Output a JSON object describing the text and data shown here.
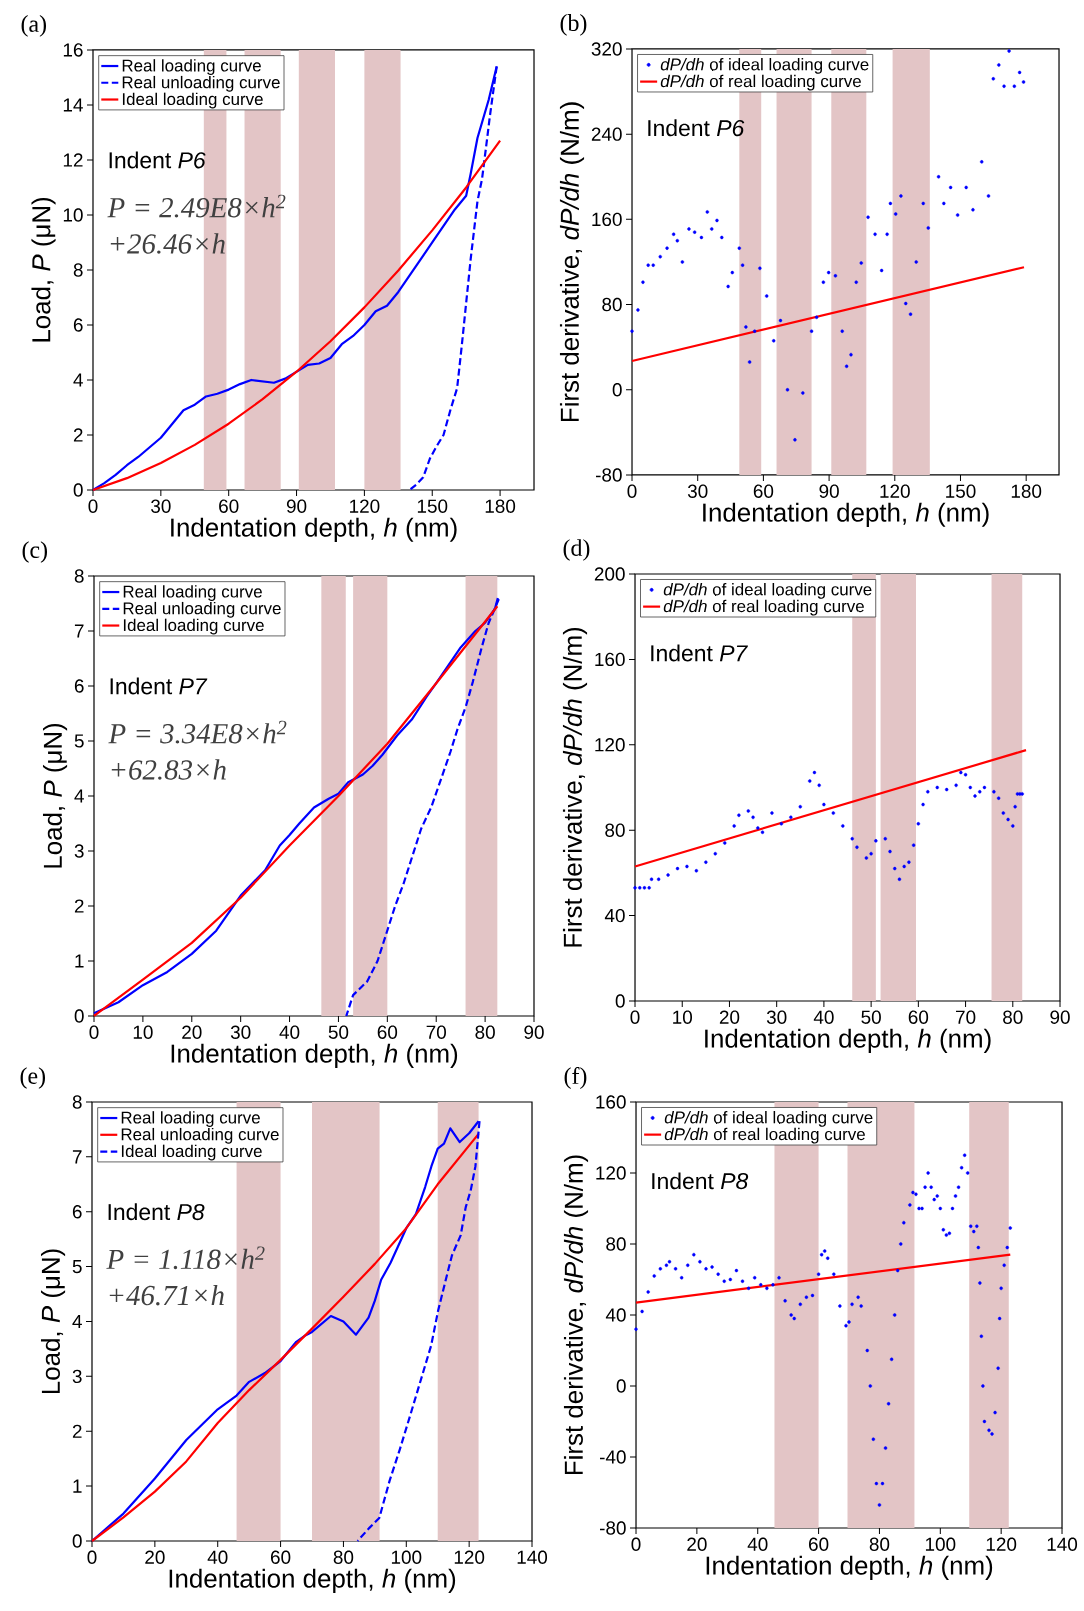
{
  "chart_data": [
    {
      "type": "line",
      "annotations": [
        "(a)",
        "Indent *P6*",
        "P = 2.49E8×h$^{2}$",
        "+26.46×h"
      ],
      "xlabel": "Indentation depth, *h* (nm)",
      "ylabel": "Load, *P* (μN)",
      "xlim": [
        0,
        195
      ],
      "xticks": [
        0,
        30,
        60,
        90,
        120,
        150,
        180
      ],
      "ylim": [
        0,
        16
      ],
      "yticks": [
        0,
        2,
        4,
        6,
        8,
        10,
        12,
        14,
        16
      ],
      "legend": "top left",
      "bands": [
        {
          "axis": "x",
          "from": 49,
          "to": 59,
          "color": "#e3c5c6"
        },
        {
          "axis": "x",
          "from": 67,
          "to": 83,
          "color": "#e3c5c6"
        },
        {
          "axis": "x",
          "from": 91,
          "to": 107,
          "color": "#e3c5c6"
        },
        {
          "axis": "x",
          "from": 120,
          "to": 136,
          "color": "#e3c5c6"
        }
      ],
      "series": [
        {
          "name": "Real loading curve",
          "color": "#0000ff",
          "line_style": "solid",
          "x": [
            0,
            5,
            10,
            15,
            20,
            25,
            30,
            35,
            40,
            45,
            50,
            55,
            60,
            65,
            70,
            75,
            80,
            85,
            90,
            95,
            100,
            105,
            110,
            115,
            120,
            125,
            130,
            135,
            140,
            145,
            150,
            155,
            160,
            165,
            167,
            170,
            175,
            178.5
          ],
          "values": [
            0,
            0.25,
            0.55,
            0.9,
            1.2,
            1.55,
            1.9,
            2.4,
            2.9,
            3.1,
            3.4,
            3.5,
            3.65,
            3.85,
            4.0,
            3.95,
            3.9,
            4.05,
            4.3,
            4.55,
            4.6,
            4.8,
            5.3,
            5.6,
            6.0,
            6.5,
            6.7,
            7.2,
            7.8,
            8.4,
            9.0,
            9.6,
            10.2,
            10.7,
            11.5,
            12.8,
            14.2,
            15.4
          ]
        },
        {
          "name": "Real unloading curve",
          "color": "#0000ff",
          "line_style": "dashed",
          "x": [
            178.5,
            177,
            175.5,
            174,
            172,
            170,
            167,
            165,
            163,
            161,
            158,
            155,
            152,
            149,
            146,
            143,
            140
          ],
          "values": [
            15.4,
            14.5,
            13.6,
            12.6,
            11.3,
            10.5,
            8.4,
            6.8,
            5.2,
            3.7,
            2.9,
            2.0,
            1.6,
            1.15,
            0.46,
            0.2,
            0
          ]
        },
        {
          "name": "Ideal loading curve",
          "color": "#ff0000",
          "line_style": "solid",
          "x": [
            0,
            15,
            30,
            45,
            60,
            75,
            90,
            105,
            120,
            135,
            150,
            165,
            180
          ],
          "values": [
            0,
            0.43,
            0.98,
            1.64,
            2.41,
            3.3,
            4.3,
            5.41,
            6.64,
            7.98,
            9.44,
            11.0,
            12.7
          ]
        }
      ]
    },
    {
      "type": "scatter",
      "annotations": [
        "(b)",
        "Indent *P6*"
      ],
      "xlabel": "Indentation depth, *h* (nm)",
      "ylabel": "First derivative, *dP/dh* (N/m)",
      "xlim": [
        0,
        195
      ],
      "xticks": [
        0,
        30,
        60,
        90,
        120,
        150,
        180
      ],
      "ylim": [
        -80,
        320
      ],
      "yticks": [
        -80,
        0,
        80,
        160,
        240,
        320
      ],
      "legend": "top left",
      "bands": [
        {
          "axis": "x",
          "from": 49,
          "to": 59,
          "color": "#e3c5c6"
        },
        {
          "axis": "x",
          "from": 66,
          "to": 82,
          "color": "#e3c5c6"
        },
        {
          "axis": "x",
          "from": 91,
          "to": 107,
          "color": "#e3c5c6"
        },
        {
          "axis": "x",
          "from": 119,
          "to": 136,
          "color": "#e3c5c6"
        }
      ],
      "series": [
        {
          "name": "*dP/dh* of ideal loading curve",
          "color": "#0000ff",
          "marker": "circle",
          "x": [
            0,
            2.7,
            5,
            7.4,
            9.7,
            12.9,
            16,
            19,
            20.7,
            23,
            26,
            28.6,
            31.7,
            34.4,
            36.4,
            38.8,
            41,
            43.9,
            45.8,
            49,
            50.5,
            52,
            53.7,
            56,
            58.4,
            61.5,
            64.7,
            67.8,
            71,
            74.4,
            78,
            82,
            84.3,
            87.4,
            89.8,
            92.9,
            96,
            98,
            100,
            102.4,
            104.7,
            107.8,
            111,
            114,
            116.5,
            118,
            120.4,
            122.8,
            125,
            127.2,
            129.8,
            133,
            135.3,
            140,
            142.4,
            145.5,
            148.7,
            152.6,
            155.7,
            159.7,
            162.8,
            165,
            167.5,
            169.9,
            172.2,
            174.6,
            177,
            178.8
          ],
          "values": [
            55,
            75,
            101,
            117,
            117,
            125,
            133,
            146,
            140,
            120,
            151,
            148,
            143,
            167,
            151,
            159,
            143,
            97,
            110,
            133,
            117,
            59,
            26,
            55,
            114,
            88,
            46,
            65,
            0,
            -47,
            -3,
            55,
            68,
            101,
            110,
            107,
            55,
            22,
            33,
            101,
            119,
            162,
            146,
            112,
            146,
            175,
            165,
            182,
            81,
            71,
            120,
            175,
            152,
            200,
            175,
            190,
            164,
            190,
            169,
            214,
            182,
            292,
            305,
            285,
            318,
            285,
            298,
            289
          ]
        },
        {
          "name": "*dP/dh* of real loading curve",
          "color": "#ff0000",
          "type": "line",
          "line_style": "solid",
          "x": [
            0,
            179
          ],
          "values": [
            27,
            115
          ]
        }
      ]
    },
    {
      "type": "line",
      "annotations": [
        "(c)",
        "Indent *P7*",
        "P = 3.34E8×h$^{2}$",
        "+62.83×h"
      ],
      "xlabel": "Indentation depth, *h* (nm)",
      "ylabel": "Load, *P* (μN)",
      "xlim": [
        0,
        90
      ],
      "xticks": [
        0,
        10,
        20,
        30,
        40,
        50,
        60,
        70,
        80,
        90
      ],
      "ylim": [
        0,
        8
      ],
      "yticks": [
        0,
        1,
        2,
        3,
        4,
        5,
        6,
        7,
        8
      ],
      "legend": "top left",
      "bands": [
        {
          "axis": "x",
          "from": 46.5,
          "to": 51.5,
          "color": "#e3c5c6"
        },
        {
          "axis": "x",
          "from": 53,
          "to": 60,
          "color": "#e3c5c6"
        },
        {
          "axis": "x",
          "from": 76,
          "to": 82.5,
          "color": "#e3c5c6"
        }
      ],
      "series": [
        {
          "name": "Real loading curve",
          "color": "#0000ff",
          "line_style": "solid",
          "x": [
            0,
            5,
            10,
            15,
            20,
            25,
            30,
            35,
            38,
            40,
            42,
            45,
            48,
            50,
            52,
            55,
            57,
            59,
            62,
            65,
            68,
            70,
            75,
            78,
            80,
            82,
            82.6
          ],
          "values": [
            0.05,
            0.25,
            0.56,
            0.8,
            1.13,
            1.55,
            2.19,
            2.65,
            3.1,
            3.29,
            3.5,
            3.79,
            3.95,
            4.04,
            4.25,
            4.39,
            4.55,
            4.75,
            5.1,
            5.39,
            5.8,
            6.05,
            6.7,
            7.0,
            7.15,
            7.4,
            7.6
          ]
        },
        {
          "name": "Real unloading curve",
          "color": "#0000ff",
          "line_style": "dashed",
          "x": [
            82.8,
            80.7,
            79.3,
            77.5,
            76.1,
            74.3,
            72.9,
            70.8,
            69,
            66.9,
            65.1,
            63.3,
            61.6,
            59.8,
            58,
            55.9,
            53,
            51.6
          ],
          "values": [
            7.58,
            7.14,
            6.7,
            6.08,
            5.64,
            5.2,
            4.8,
            4.26,
            3.8,
            3.4,
            2.9,
            2.4,
            2.0,
            1.5,
            1.0,
            0.63,
            0.38,
            0
          ]
        },
        {
          "name": "Ideal loading curve",
          "color": "#ff0000",
          "line_style": "solid",
          "x": [
            0,
            10,
            20,
            30,
            40,
            50,
            60,
            70,
            82.5
          ],
          "values": [
            0,
            0.66,
            1.33,
            2.15,
            3.1,
            4.0,
            4.95,
            6.05,
            7.45
          ]
        }
      ]
    },
    {
      "type": "scatter",
      "annotations": [
        "(d)",
        "Indent *P7*"
      ],
      "xlabel": "Indentation depth, *h* (nm)",
      "ylabel": "First derivative, *dP/dh* (N/m)",
      "xlim": [
        0,
        90
      ],
      "xticks": [
        0,
        10,
        20,
        30,
        40,
        50,
        60,
        70,
        80,
        90
      ],
      "ylim": [
        0,
        200
      ],
      "yticks": [
        0,
        40,
        80,
        120,
        160,
        200
      ],
      "legend": "top left",
      "bands": [
        {
          "axis": "x",
          "from": 46,
          "to": 51,
          "color": "#e3c5c6"
        },
        {
          "axis": "x",
          "from": 52,
          "to": 59.5,
          "color": "#e3c5c6"
        },
        {
          "axis": "x",
          "from": 75.5,
          "to": 82,
          "color": "#e3c5c6"
        }
      ],
      "series": [
        {
          "name": "*dP/dh* of ideal loading curve",
          "color": "#0000ff",
          "marker": "circle",
          "x": [
            0,
            1,
            2,
            3,
            3.5,
            5,
            7,
            9,
            11,
            13,
            15,
            17,
            19,
            21,
            22,
            24,
            25,
            26,
            27,
            29,
            31,
            33,
            35,
            37,
            38,
            39,
            40,
            42,
            44,
            46,
            47,
            49,
            50,
            51,
            53,
            54,
            55,
            56,
            57,
            58,
            59,
            60,
            61,
            62,
            64,
            66,
            68,
            69,
            70,
            71,
            72,
            73,
            74,
            76,
            77,
            78,
            79,
            80,
            80.5,
            81,
            81.5,
            82
          ],
          "values": [
            53,
            53,
            53,
            53,
            57,
            57,
            59,
            62,
            63,
            61,
            65,
            69,
            74,
            82,
            87,
            89,
            86,
            81,
            79,
            88,
            83,
            86,
            91,
            103,
            107,
            101,
            92,
            88,
            82,
            76,
            72,
            67,
            69,
            75,
            76,
            70,
            62,
            57,
            63,
            65,
            73,
            83,
            92,
            98,
            100,
            99,
            101,
            107,
            106,
            100,
            96,
            98,
            100,
            98,
            95,
            88,
            85,
            82,
            91,
            97,
            97,
            97
          ]
        },
        {
          "name": "*dP/dh* of real loading curve",
          "color": "#ff0000",
          "type": "line",
          "line_style": "solid",
          "x": [
            0,
            82.8
          ],
          "values": [
            63,
            117.5
          ]
        }
      ]
    },
    {
      "type": "line",
      "annotations": [
        "(e)",
        "Indent *P8*",
        "P = 1.118×h$^{2}$",
        "+46.71×h"
      ],
      "xlabel": "Indentation depth, *h* (nm)",
      "ylabel": "Load, *P* (μN)",
      "xlim": [
        0,
        140
      ],
      "xticks": [
        0,
        20,
        40,
        60,
        80,
        100,
        120,
        140
      ],
      "ylim": [
        0,
        8
      ],
      "yticks": [
        0,
        1,
        2,
        3,
        4,
        5,
        6,
        7,
        8
      ],
      "legend": "top left",
      "bands": [
        {
          "axis": "x",
          "from": 46,
          "to": 60,
          "color": "#e3c5c6"
        },
        {
          "axis": "x",
          "from": 70,
          "to": 91.5,
          "color": "#e3c5c6"
        },
        {
          "axis": "x",
          "from": 110,
          "to": 123,
          "color": "#e3c5c6"
        }
      ],
      "series": [
        {
          "name": "Real loading curve",
          "color": "#0000ff",
          "line_style": "solid",
          "x": [
            0,
            10,
            20,
            30,
            40,
            46,
            50,
            55,
            60,
            65,
            68,
            70,
            76,
            80,
            84,
            88,
            90,
            92,
            95,
            100,
            103,
            106,
            108,
            110,
            112,
            114,
            117,
            120,
            123
          ],
          "values": [
            0,
            0.5,
            1.14,
            1.84,
            2.4,
            2.65,
            2.9,
            3.06,
            3.28,
            3.63,
            3.75,
            3.81,
            4.1,
            4.0,
            3.76,
            4.07,
            4.38,
            4.76,
            5.07,
            5.7,
            5.95,
            6.45,
            6.83,
            7.15,
            7.24,
            7.52,
            7.27,
            7.43,
            7.65
          ]
        },
        {
          "name": "Real unloading curve",
          "color": "#ff0000",
          "line_style": "solid",
          "x": [
            0,
            10,
            20,
            30,
            40,
            50,
            60,
            70,
            80,
            90,
            100,
            110,
            123
          ],
          "values": [
            0,
            0.43,
            0.9,
            1.45,
            2.15,
            2.75,
            3.3,
            3.87,
            4.45,
            5.05,
            5.7,
            6.5,
            7.42
          ]
        },
        {
          "name": "Ideal loading curve",
          "color": "#0000ff",
          "line_style": "dashed",
          "x": [
            123.3,
            122,
            120.5,
            118.9,
            117.3,
            114.5,
            112.3,
            110.1,
            107.9,
            104.6,
            101.3,
            98,
            94.7,
            91.4,
            88.1,
            84.5
          ],
          "values": [
            7.65,
            6.83,
            6.39,
            6.08,
            5.57,
            5.2,
            4.7,
            4.19,
            3.56,
            2.93,
            2.3,
            1.68,
            1.1,
            0.42,
            0.23,
            0
          ]
        }
      ]
    },
    {
      "type": "scatter",
      "annotations": [
        "(f)",
        "Indent *P8*"
      ],
      "xlabel": "Indentation depth, *h* (nm)",
      "ylabel": "First derivative, *dP/dh* (N/m)",
      "xlim": [
        0,
        140
      ],
      "xticks": [
        0,
        20,
        40,
        60,
        80,
        100,
        120,
        140
      ],
      "ylim": [
        -80,
        160
      ],
      "yticks": [
        -80,
        -40,
        0,
        40,
        80,
        120,
        160
      ],
      "legend": "top left",
      "bands": [
        {
          "axis": "x",
          "from": 45.5,
          "to": 60,
          "color": "#e3c5c6"
        },
        {
          "axis": "x",
          "from": 69.5,
          "to": 91.5,
          "color": "#e3c5c6"
        },
        {
          "axis": "x",
          "from": 109.5,
          "to": 122.5,
          "color": "#e3c5c6"
        }
      ],
      "series": [
        {
          "name": "*dP/dh* of ideal loading curve",
          "color": "#0000ff",
          "marker": "circle",
          "x": [
            0,
            2,
            4,
            6,
            8,
            10,
            11,
            13,
            15,
            17,
            19,
            21,
            23,
            25,
            27,
            29,
            31,
            33,
            35,
            37,
            39,
            41,
            43,
            45,
            47,
            49,
            51,
            52,
            54,
            56,
            58,
            60,
            61,
            62,
            63,
            65,
            67,
            69,
            70,
            71,
            73,
            74,
            76,
            77,
            78,
            79,
            80,
            81,
            82,
            83,
            84,
            85,
            86,
            87,
            88,
            90,
            91,
            92,
            93,
            94,
            95,
            96,
            97,
            98,
            99,
            100,
            101,
            102,
            103,
            104,
            105,
            106,
            107,
            108,
            109,
            110,
            111,
            112,
            112.5,
            113,
            113.5,
            114,
            114.5,
            116,
            117,
            118,
            119,
            119.5,
            120,
            121,
            122,
            123
          ],
          "values": [
            32,
            42,
            53,
            62,
            66,
            68,
            70,
            66,
            61,
            68,
            74,
            70,
            66,
            67,
            63,
            59,
            60,
            65,
            59,
            55,
            61,
            57,
            55,
            57,
            61,
            48,
            40,
            38,
            46,
            50,
            51,
            63,
            74,
            76,
            72,
            63,
            45,
            34,
            36,
            46,
            50,
            45,
            20,
            0,
            -30,
            -55,
            -67,
            -55,
            -35,
            -10,
            15,
            40,
            65,
            80,
            92,
            102,
            109,
            108,
            100,
            100,
            112,
            120,
            112,
            105,
            107,
            100,
            88,
            85,
            86,
            100,
            107,
            112,
            123,
            130,
            120,
            90,
            87,
            90,
            78,
            58,
            28,
            0,
            -20,
            -25,
            -27,
            -15,
            10,
            38,
            55,
            68,
            78,
            89
          ]
        },
        {
          "name": "*dP/dh* of real loading curve",
          "color": "#ff0000",
          "type": "line",
          "line_style": "solid",
          "x": [
            0,
            123
          ],
          "values": [
            47,
            74
          ]
        }
      ]
    }
  ]
}
